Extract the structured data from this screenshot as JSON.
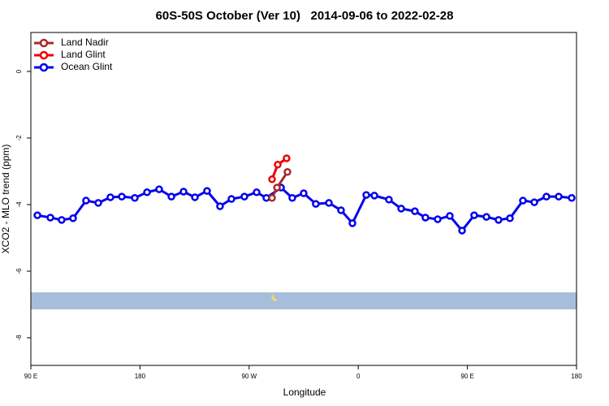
{
  "chart_data": {
    "type": "line",
    "title": "60S-50S October (Ver 10)   2014-09-06 to 2022-02-28",
    "x_label": "Longitude",
    "y_label": "XCO2 - MLO trend (ppm)",
    "xlim": [
      90,
      540
    ],
    "ylim": [
      -8.83,
      1.17
    ],
    "xticks": [
      {
        "value": 90,
        "label": "90 E"
      },
      180,
      {
        "value": 270,
        "label": "90 W"
      },
      {
        "value": 360,
        "label": "0"
      },
      {
        "value": 450,
        "label": "90 E"
      },
      {
        "value": 540,
        "label": "180"
      }
    ],
    "yticks": [
      0,
      -2,
      -4,
      -6,
      -8
    ],
    "legend": "top-left",
    "series": [
      {
        "name": "Land Nadir",
        "color": "#a52a2a",
        "x": [
          288.9,
          293.0,
          301.6
        ],
        "values": [
          -3.8,
          -3.49,
          -3.02
        ]
      },
      {
        "name": "Land Glint",
        "color": "#ee0000",
        "x": [
          288.9,
          293.6,
          300.9
        ],
        "values": [
          -3.24,
          -2.8,
          -2.61
        ]
      },
      {
        "name": "Ocean Glint",
        "color": "#0000ee",
        "x": [
          95.4,
          106.1,
          115.4,
          124.8,
          135.5,
          145.6,
          155.6,
          165.0,
          175.7,
          185.8,
          195.8,
          205.9,
          215.9,
          225.3,
          235.3,
          246.0,
          255.4,
          266.1,
          276.2,
          284.2,
          296.3,
          305.6,
          315.0,
          325.0,
          335.8,
          345.8,
          355.2,
          366.6,
          373.3,
          385.3,
          395.4,
          406.7,
          415.4,
          425.5,
          435.5,
          445.6,
          455.6,
          465.7,
          475.7,
          485.1,
          495.8,
          505.2,
          515.2,
          525.3,
          536.0
        ],
        "values": [
          -4.32,
          -4.39,
          -4.46,
          -4.41,
          -3.88,
          -3.95,
          -3.78,
          -3.76,
          -3.8,
          -3.63,
          -3.54,
          -3.76,
          -3.61,
          -3.78,
          -3.59,
          -4.05,
          -3.83,
          -3.76,
          -3.63,
          -3.8,
          -3.49,
          -3.8,
          -3.66,
          -3.98,
          -3.95,
          -4.17,
          -4.56,
          -3.71,
          -3.73,
          -3.85,
          -4.12,
          -4.2,
          -4.39,
          -4.44,
          -4.34,
          -4.78,
          -4.32,
          -4.37,
          -4.46,
          -4.41,
          -3.88,
          -3.93,
          -3.76,
          -3.76,
          -3.8
        ]
      }
    ]
  }
}
